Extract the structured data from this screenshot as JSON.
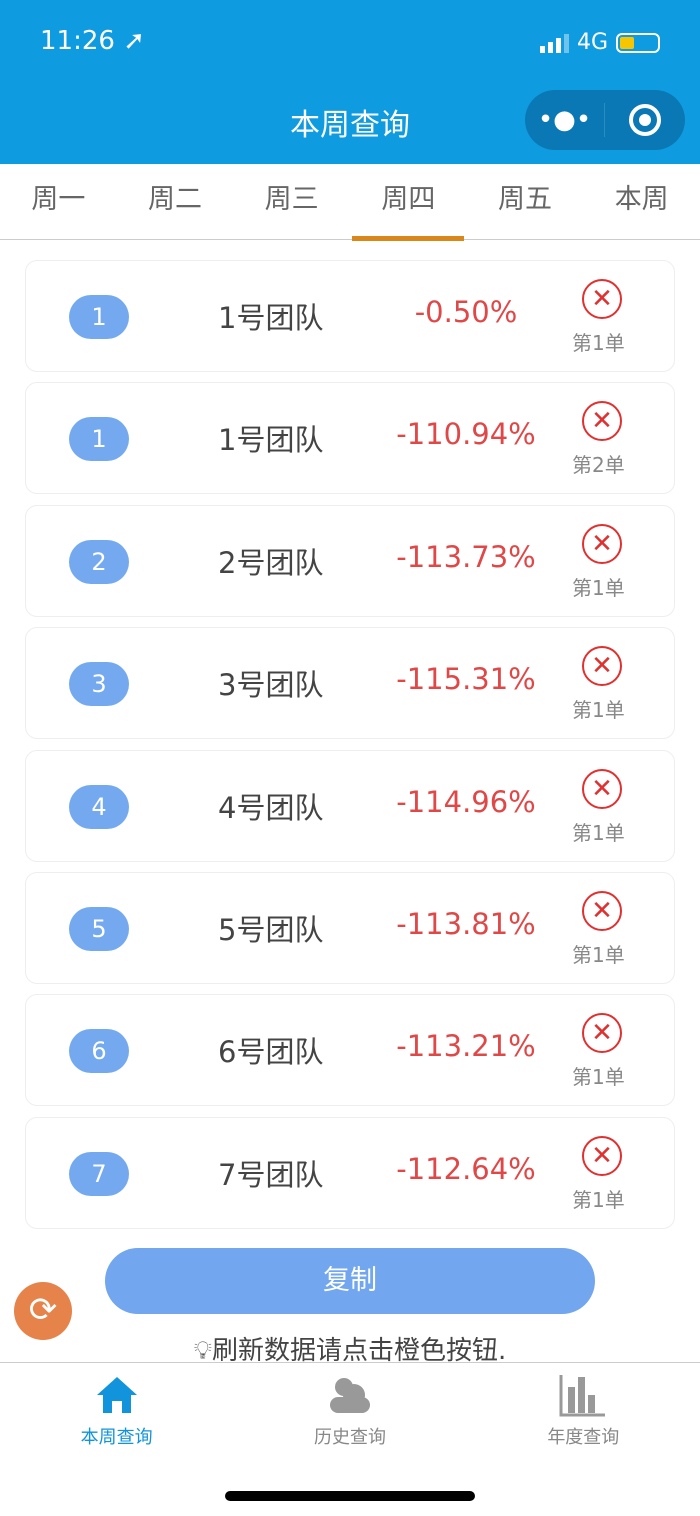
{
  "status_bar": {
    "time": "11:26",
    "network": "4G"
  },
  "header": {
    "title": "本周查询"
  },
  "tabs": [
    {
      "label": "周一"
    },
    {
      "label": "周二"
    },
    {
      "label": "周三"
    },
    {
      "label": "周四",
      "active": true
    },
    {
      "label": "周五"
    },
    {
      "label": "本周"
    }
  ],
  "rows": [
    {
      "rank": "1",
      "team": "1号团队",
      "pct": "-0.50%",
      "order": "第1单"
    },
    {
      "rank": "1",
      "team": "1号团队",
      "pct": "-110.94%",
      "order": "第2单"
    },
    {
      "rank": "2",
      "team": "2号团队",
      "pct": "-113.73%",
      "order": "第1单"
    },
    {
      "rank": "3",
      "team": "3号团队",
      "pct": "-115.31%",
      "order": "第1单"
    },
    {
      "rank": "4",
      "team": "4号团队",
      "pct": "-114.96%",
      "order": "第1单"
    },
    {
      "rank": "5",
      "team": "5号团队",
      "pct": "-113.81%",
      "order": "第1单"
    },
    {
      "rank": "6",
      "team": "6号团队",
      "pct": "-113.21%",
      "order": "第1单"
    },
    {
      "rank": "7",
      "team": "7号团队",
      "pct": "-112.64%",
      "order": "第1单"
    }
  ],
  "copy_label": "复制",
  "hint": "刷新数据请点击橙色按钮.",
  "tabbar": [
    {
      "label": "本周查询",
      "icon": "home-icon"
    },
    {
      "label": "历史查询",
      "icon": "cloud-icon"
    },
    {
      "label": "年度查询",
      "icon": "bar-chart-icon"
    }
  ],
  "colors": {
    "header": "#0f9be0",
    "accent": "#d9861a",
    "negative": "#e04848",
    "button": "#72a6ef",
    "refresh": "#e6834a"
  }
}
